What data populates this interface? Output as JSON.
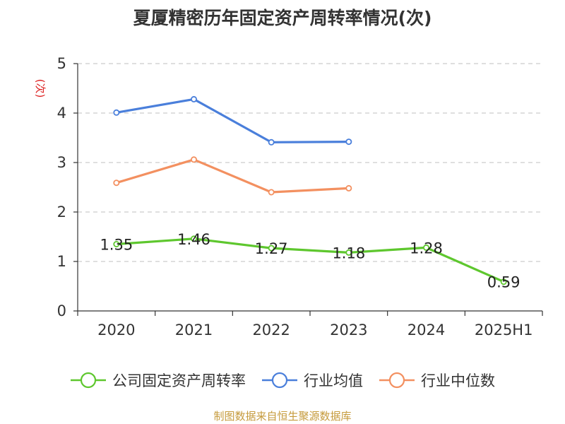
{
  "title": "夏厦精密历年固定资产周转率情况(次)",
  "source": "制图数据来自恒生聚源数据库",
  "chart_data": {
    "type": "line",
    "title": "夏厦精密历年固定资产周转率情况(次)",
    "ylabel": "(次)",
    "xlabel": "",
    "categories": [
      "2020",
      "2021",
      "2022",
      "2023",
      "2024",
      "2025H1"
    ],
    "ylim": [
      0,
      5
    ],
    "yticks": [
      0,
      1,
      2,
      3,
      4,
      5
    ],
    "grid": true,
    "legend_position": "bottom",
    "series": [
      {
        "name": "公司固定资产周转率",
        "color": "#5ec72e",
        "values": [
          1.35,
          1.46,
          1.27,
          1.18,
          1.28,
          0.59
        ],
        "show_labels": true
      },
      {
        "name": "行业均值",
        "color": "#4a7fdb",
        "values": [
          4.01,
          4.28,
          3.41,
          3.42,
          null,
          null
        ],
        "show_labels": false
      },
      {
        "name": "行业中位数",
        "color": "#f39060",
        "values": [
          2.59,
          3.06,
          2.4,
          2.48,
          null,
          null
        ],
        "show_labels": false
      }
    ]
  }
}
